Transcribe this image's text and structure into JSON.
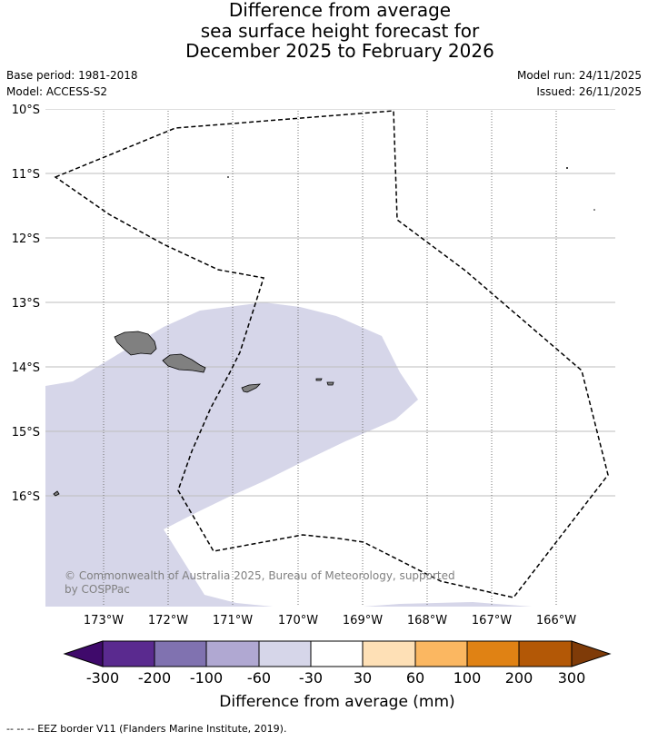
{
  "title": {
    "line1": "Difference from average",
    "line2": "sea surface height forecast for",
    "line3": "December 2025 to February 2026"
  },
  "meta": {
    "base_period": "Base period: 1981-2018",
    "model": "Model: ACCESS-S2",
    "model_run": "Model run: 24/11/2025",
    "issued": "Issued: 26/11/2025"
  },
  "map": {
    "lat_labels": [
      "10°S",
      "11°S",
      "12°S",
      "13°S",
      "14°S",
      "15°S",
      "16°S"
    ],
    "lon_labels": [
      "173°W",
      "172°W",
      "171°W",
      "170°W",
      "169°W",
      "168°W",
      "167°W",
      "166°W"
    ],
    "copyright_line1": "© Commonwealth of Australia 2025, Bureau of Meteorology, supported",
    "copyright_line2": "by COSPPac",
    "colors": {
      "anomaly_fill": "#d6d6e9",
      "land": "#808080",
      "grid": "#bdbdbd"
    }
  },
  "colorbar": {
    "tick_labels": [
      "-300",
      "-200",
      "-100",
      "-60",
      "-30",
      "30",
      "60",
      "100",
      "200",
      "300"
    ],
    "label": "Difference from average (mm)",
    "colors": [
      "#3f0a6b",
      "#5a2a8f",
      "#8072b0",
      "#b0a8d2",
      "#d6d6e9",
      "#ffffff",
      "#fee0b6",
      "#fbb761",
      "#e08214",
      "#b35806",
      "#7f3b08"
    ]
  },
  "footnote": "--  --  -- EEZ border V11 (Flanders Marine Institute, 2019)."
}
